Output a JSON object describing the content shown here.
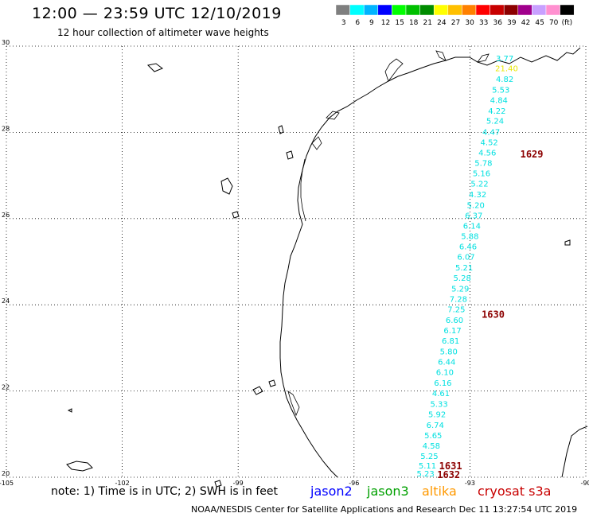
{
  "header": {
    "title": "12:00 — 23:59 UTC 12/10/2019",
    "subtitle": "12 hour collection of altimeter wave heights"
  },
  "color_scale": {
    "unit": "(ft)",
    "bins": [
      {
        "label": "3",
        "color": "#7f7f7f"
      },
      {
        "label": "6",
        "color": "#00ffff"
      },
      {
        "label": "9",
        "color": "#00b4ff"
      },
      {
        "label": "12",
        "color": "#0000ff"
      },
      {
        "label": "15",
        "color": "#00ff00"
      },
      {
        "label": "18",
        "color": "#00c000"
      },
      {
        "label": "21",
        "color": "#008c00"
      },
      {
        "label": "24",
        "color": "#ffff00"
      },
      {
        "label": "27",
        "color": "#ffc000"
      },
      {
        "label": "30",
        "color": "#ff8000"
      },
      {
        "label": "33",
        "color": "#ff0000"
      },
      {
        "label": "36",
        "color": "#c80000"
      },
      {
        "label": "39",
        "color": "#8c0000"
      },
      {
        "label": "42",
        "color": "#a0008c"
      },
      {
        "label": "45",
        "color": "#c8a0ff"
      },
      {
        "label": "70",
        "color": "#ff90d0"
      },
      {
        "label": "",
        "color": "#000000"
      }
    ]
  },
  "chart_data": {
    "type": "scatter",
    "xlim": [
      -105,
      -90
    ],
    "ylim": [
      20,
      30
    ],
    "x_ticks": [
      "-105",
      "-102",
      "-99",
      "-96",
      "-93",
      "-90"
    ],
    "y_ticks": [
      "20",
      "22",
      "24",
      "26",
      "28",
      "30"
    ],
    "grid": true,
    "points": [
      {
        "lon": -92.1,
        "lat": 29.65,
        "value": "3.77",
        "color": "#00e0e0"
      },
      {
        "lon": -92.05,
        "lat": 29.42,
        "value": "21.40",
        "color": "#e8e800"
      },
      {
        "lon": -92.1,
        "lat": 29.17,
        "value": "4.82",
        "color": "#00e0e0"
      },
      {
        "lon": -92.2,
        "lat": 28.92,
        "value": "5.53",
        "color": "#00e0e0"
      },
      {
        "lon": -92.25,
        "lat": 28.68,
        "value": "4.84",
        "color": "#00e0e0"
      },
      {
        "lon": -92.3,
        "lat": 28.43,
        "value": "4.22",
        "color": "#00e0e0"
      },
      {
        "lon": -92.35,
        "lat": 28.2,
        "value": "5.24",
        "color": "#00e0e0"
      },
      {
        "lon": -92.45,
        "lat": 27.94,
        "value": "4.47",
        "color": "#00e0e0"
      },
      {
        "lon": -92.5,
        "lat": 27.7,
        "value": "4.52",
        "color": "#00e0e0"
      },
      {
        "lon": -92.55,
        "lat": 27.46,
        "value": "4.56",
        "color": "#00e0e0"
      },
      {
        "lon": -92.65,
        "lat": 27.22,
        "value": "5.78",
        "color": "#00e0e0"
      },
      {
        "lon": -92.7,
        "lat": 26.98,
        "value": "5.16",
        "color": "#00e0e0"
      },
      {
        "lon": -92.75,
        "lat": 26.74,
        "value": "5.22",
        "color": "#00e0e0"
      },
      {
        "lon": -92.8,
        "lat": 26.49,
        "value": "4.32",
        "color": "#00e0e0"
      },
      {
        "lon": -92.85,
        "lat": 26.25,
        "value": "5.20",
        "color": "#00e0e0"
      },
      {
        "lon": -92.9,
        "lat": 26.01,
        "value": "6.37",
        "color": "#00e0e0"
      },
      {
        "lon": -92.95,
        "lat": 25.77,
        "value": "6.14",
        "color": "#00e0e0"
      },
      {
        "lon": -93.0,
        "lat": 25.53,
        "value": "5.88",
        "color": "#00e0e0"
      },
      {
        "lon": -93.05,
        "lat": 25.29,
        "value": "6.46",
        "color": "#00e0e0"
      },
      {
        "lon": -93.1,
        "lat": 25.05,
        "value": "6.07",
        "color": "#00e0e0"
      },
      {
        "lon": -93.15,
        "lat": 24.8,
        "value": "5.21",
        "color": "#00e0e0"
      },
      {
        "lon": -93.2,
        "lat": 24.56,
        "value": "5.28",
        "color": "#00e0e0"
      },
      {
        "lon": -93.25,
        "lat": 24.31,
        "value": "5.29",
        "color": "#00e0e0"
      },
      {
        "lon": -93.3,
        "lat": 24.07,
        "value": "7.28",
        "color": "#00e0e0"
      },
      {
        "lon": -93.35,
        "lat": 23.83,
        "value": "7.25",
        "color": "#00e0e0"
      },
      {
        "lon": -93.4,
        "lat": 23.58,
        "value": "6.60",
        "color": "#00e0e0"
      },
      {
        "lon": -93.45,
        "lat": 23.34,
        "value": "6.17",
        "color": "#00e0e0"
      },
      {
        "lon": -93.5,
        "lat": 23.1,
        "value": "6.81",
        "color": "#00e0e0"
      },
      {
        "lon": -93.55,
        "lat": 22.85,
        "value": "5.80",
        "color": "#00e0e0"
      },
      {
        "lon": -93.6,
        "lat": 22.61,
        "value": "6.44",
        "color": "#00e0e0"
      },
      {
        "lon": -93.65,
        "lat": 22.37,
        "value": "6.10",
        "color": "#00e0e0"
      },
      {
        "lon": -93.7,
        "lat": 22.12,
        "value": "6.16",
        "color": "#00e0e0"
      },
      {
        "lon": -93.75,
        "lat": 21.88,
        "value": "4.61",
        "color": "#00e0e0"
      },
      {
        "lon": -93.8,
        "lat": 21.63,
        "value": "5.33",
        "color": "#00e0e0"
      },
      {
        "lon": -93.85,
        "lat": 21.39,
        "value": "5.92",
        "color": "#00e0e0"
      },
      {
        "lon": -93.9,
        "lat": 21.14,
        "value": "6.74",
        "color": "#00e0e0"
      },
      {
        "lon": -93.95,
        "lat": 20.9,
        "value": "5.65",
        "color": "#00e0e0"
      },
      {
        "lon": -94.0,
        "lat": 20.66,
        "value": "4.58",
        "color": "#00e0e0"
      },
      {
        "lon": -94.05,
        "lat": 20.42,
        "value": "5.25",
        "color": "#00e0e0"
      },
      {
        "lon": -94.1,
        "lat": 20.2,
        "value": "5.11",
        "color": "#00e0e0"
      },
      {
        "lon": -94.15,
        "lat": 20.02,
        "value": "5.23",
        "color": "#00e0e0"
      }
    ],
    "time_labels": [
      {
        "lon": -91.4,
        "lat": 27.42,
        "text": "1629",
        "color": "#8c0000"
      },
      {
        "lon": -92.4,
        "lat": 23.7,
        "text": "1630",
        "color": "#8c0000"
      },
      {
        "lon": -93.5,
        "lat": 20.18,
        "text": "1631",
        "color": "#8c0000"
      },
      {
        "lon": -93.55,
        "lat": 19.98,
        "text": "1632",
        "color": "#8c0000"
      }
    ]
  },
  "footer": {
    "note": "note: 1) Time is in UTC; 2) SWH is in feet",
    "missions": [
      {
        "label": "jason2",
        "color": "#0000ff"
      },
      {
        "label": "jason3",
        "color": "#00a000"
      },
      {
        "label": "altika",
        "color": "#ff9900"
      },
      {
        "label": "cryosat s3a",
        "color": "#c80000"
      }
    ],
    "credit": "NOAA/NESDIS Center for Satellite Applications and Research    Dec 11 13:27:54 UTC 2019"
  }
}
